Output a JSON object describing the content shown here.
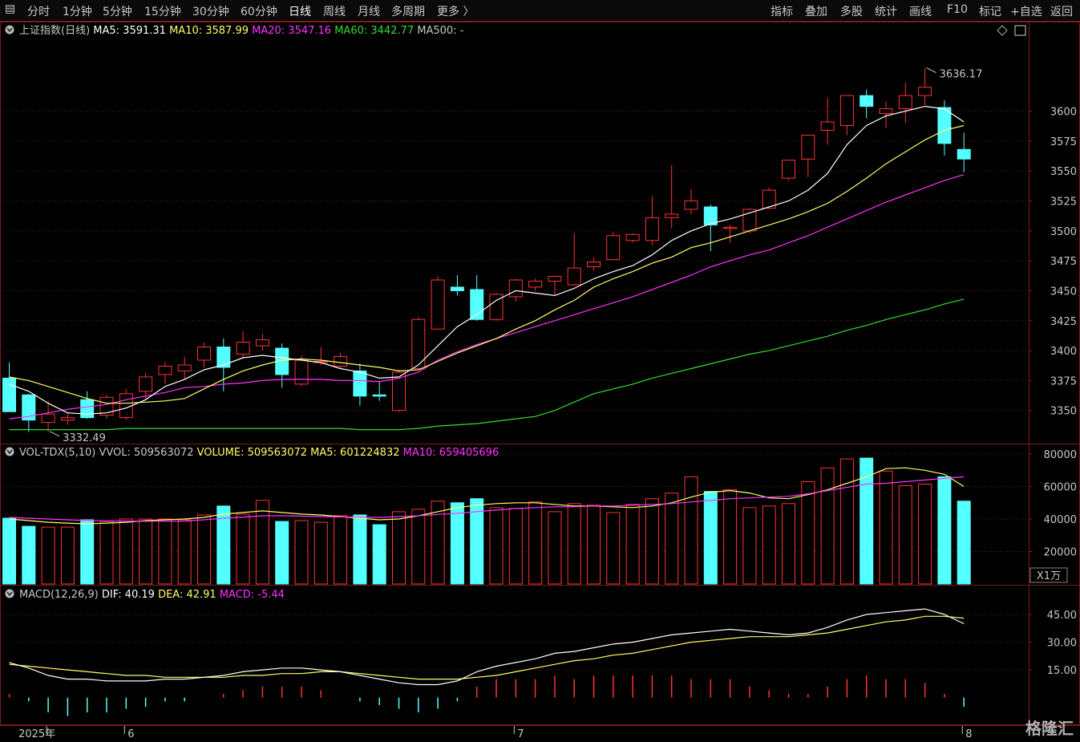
{
  "toolbar": {
    "left_items": [
      "分时",
      "1分钟",
      "5分钟",
      "15分钟",
      "30分钟",
      "60分钟",
      "日线",
      "周线",
      "月线",
      "多周期",
      "更多 〉"
    ],
    "active": "日线",
    "right_items": [
      "指标",
      "叠加",
      "多股",
      "统计",
      "画线",
      "F10",
      "标记",
      "+自选",
      "返回"
    ]
  },
  "colors": {
    "up": "#ff3232",
    "down": "#54ffff",
    "ma5": "#ffffff",
    "ma10": "#ffff66",
    "ma20": "#ff33ff",
    "ma60": "#33dd33",
    "grid": "#7a1c1c",
    "axis_text": "#c8c8c8"
  },
  "chart_data": [
    {
      "type": "candlestick",
      "name": "上证指数(日线)",
      "legend": [
        {
          "label": "MA5: 3591.31",
          "color": "#ffffff"
        },
        {
          "label": "MA10: 3587.99",
          "color": "#ffff66"
        },
        {
          "label": "MA20: 3547.16",
          "color": "#ff33ff"
        },
        {
          "label": "MA60: 3442.77",
          "color": "#33dd33"
        },
        {
          "label": "MA500: -",
          "color": "#c8c8c8"
        }
      ],
      "yticks": [
        3350,
        3375,
        3400,
        3425,
        3450,
        3475,
        3500,
        3525,
        3550,
        3575,
        3600
      ],
      "ylim": [
        3323,
        3660
      ],
      "annotations": [
        {
          "text": "3636.17",
          "x": 47,
          "y": 3636.17
        },
        {
          "text": "3332.49",
          "x": 2,
          "y": 3332.49
        }
      ],
      "ohlc": [
        [
          3377,
          3390,
          3349,
          3349
        ],
        [
          3363,
          3364,
          3332,
          3342
        ],
        [
          3340,
          3358,
          3332,
          3347
        ],
        [
          3342,
          3348,
          3338,
          3344
        ],
        [
          3359,
          3366,
          3343,
          3344
        ],
        [
          3346,
          3363,
          3343,
          3361
        ],
        [
          3344,
          3368,
          3342,
          3364
        ],
        [
          3366,
          3381,
          3360,
          3378
        ],
        [
          3380,
          3390,
          3372,
          3387
        ],
        [
          3383,
          3395,
          3376,
          3388
        ],
        [
          3392,
          3407,
          3386,
          3403
        ],
        [
          3403,
          3410,
          3366,
          3386
        ],
        [
          3397,
          3416,
          3394,
          3407
        ],
        [
          3404,
          3414,
          3400,
          3409
        ],
        [
          3402,
          3406,
          3369,
          3380
        ],
        [
          3372,
          3396,
          3370,
          3392
        ],
        [
          3391,
          3403,
          3388,
          3391
        ],
        [
          3387,
          3398,
          3385,
          3395
        ],
        [
          3383,
          3389,
          3354,
          3362
        ],
        [
          3363,
          3374,
          3358,
          3362
        ],
        [
          3350,
          3384,
          3349,
          3382
        ],
        [
          3385,
          3428,
          3385,
          3426
        ],
        [
          3418,
          3462,
          3418,
          3459
        ],
        [
          3453,
          3463,
          3446,
          3450
        ],
        [
          3451,
          3463,
          3425,
          3426
        ],
        [
          3426,
          3448,
          3425,
          3447
        ],
        [
          3445,
          3460,
          3441,
          3459
        ],
        [
          3453,
          3460,
          3450,
          3458
        ],
        [
          3458,
          3463,
          3446,
          3462
        ],
        [
          3455,
          3498,
          3454,
          3469
        ],
        [
          3470,
          3478,
          3467,
          3474
        ],
        [
          3476,
          3499,
          3476,
          3496
        ],
        [
          3492,
          3498,
          3490,
          3497
        ],
        [
          3492,
          3529,
          3488,
          3511
        ],
        [
          3511,
          3555,
          3502,
          3514
        ],
        [
          3518,
          3535,
          3514,
          3525
        ],
        [
          3520,
          3522,
          3483,
          3505
        ],
        [
          3502,
          3505,
          3490,
          3503
        ],
        [
          3500,
          3519,
          3498,
          3518
        ],
        [
          3519,
          3536,
          3518,
          3534
        ],
        [
          3544,
          3559,
          3542,
          3559
        ],
        [
          3560,
          3578,
          3545,
          3580
        ],
        [
          3584,
          3611,
          3572,
          3591
        ],
        [
          3588,
          3610,
          3580,
          3613
        ],
        [
          3613,
          3618,
          3594,
          3604
        ],
        [
          3598,
          3608,
          3586,
          3602
        ],
        [
          3602,
          3624,
          3590,
          3613
        ],
        [
          3613,
          3636,
          3605,
          3620
        ],
        [
          3603,
          3609,
          3563,
          3573
        ],
        [
          3568,
          3582,
          3549,
          3560
        ]
      ],
      "ma5": [
        3372,
        3366,
        3356,
        3348,
        3347,
        3348,
        3352,
        3359,
        3370,
        3376,
        3384,
        3388,
        3394,
        3396,
        3394,
        3392,
        3390,
        3385,
        3382,
        3377,
        3378,
        3388,
        3404,
        3420,
        3430,
        3442,
        3450,
        3448,
        3446,
        3452,
        3460,
        3466,
        3471,
        3480,
        3492,
        3500,
        3506,
        3510,
        3515,
        3520,
        3525,
        3534,
        3548,
        3572,
        3588,
        3596,
        3600,
        3604,
        3602,
        3591
      ],
      "ma10": [
        3378,
        3375,
        3370,
        3365,
        3360,
        3356,
        3356,
        3357,
        3358,
        3360,
        3368,
        3376,
        3383,
        3388,
        3392,
        3393,
        3392,
        3390,
        3388,
        3386,
        3383,
        3384,
        3391,
        3398,
        3404,
        3410,
        3418,
        3425,
        3434,
        3442,
        3453,
        3460,
        3466,
        3473,
        3478,
        3486,
        3490,
        3495,
        3500,
        3505,
        3510,
        3516,
        3523,
        3533,
        3544,
        3556,
        3566,
        3576,
        3584,
        3588
      ],
      "ma20": [
        3343,
        3345,
        3348,
        3351,
        3353,
        3355,
        3359,
        3362,
        3365,
        3369,
        3370,
        3372,
        3373,
        3375,
        3376,
        3376,
        3376,
        3375,
        3375,
        3374,
        3377,
        3382,
        3392,
        3399,
        3405,
        3410,
        3415,
        3420,
        3425,
        3430,
        3435,
        3440,
        3445,
        3451,
        3457,
        3463,
        3470,
        3475,
        3480,
        3484,
        3490,
        3496,
        3503,
        3510,
        3517,
        3524,
        3530,
        3536,
        3542,
        3547
      ],
      "ma60": [
        3334,
        3334,
        3334,
        3334,
        3334,
        3334,
        3335,
        3335,
        3335,
        3335,
        3335,
        3335,
        3335,
        3335,
        3335,
        3335,
        3335,
        3335,
        3334,
        3334,
        3334,
        3335,
        3337,
        3338,
        3339,
        3341,
        3343,
        3345,
        3350,
        3357,
        3364,
        3368,
        3372,
        3377,
        3381,
        3385,
        3389,
        3393,
        3397,
        3400,
        3404,
        3408,
        3412,
        3417,
        3421,
        3426,
        3430,
        3434,
        3439,
        3443
      ]
    },
    {
      "type": "bar",
      "name": "VOL-TDX(5,10)",
      "legend": [
        {
          "label": "VVOL: 509563072",
          "color": "#c8c8c8"
        },
        {
          "label": "VOLUME: 509563072",
          "color": "#ffff66"
        },
        {
          "label": "MA5: 601224832",
          "color": "#ffff66"
        },
        {
          "label": "MA10: 659405696",
          "color": "#ff33ff"
        }
      ],
      "unit": "X1万",
      "yticks": [
        20000,
        40000,
        60000,
        80000
      ],
      "ylim": [
        0,
        81000
      ],
      "values": [
        40500,
        35500,
        35000,
        35000,
        39500,
        38500,
        40000,
        40000,
        40000,
        39500,
        42500,
        48000,
        43000,
        51500,
        38500,
        39000,
        38000,
        42000,
        42500,
        36500,
        44500,
        46000,
        51000,
        50000,
        52500,
        47000,
        46500,
        50500,
        44500,
        49500,
        48500,
        44000,
        49000,
        52500,
        56000,
        66000,
        57000,
        58000,
        47000,
        48000,
        49500,
        63000,
        71500,
        77000,
        77500,
        69500,
        60500,
        61500,
        66000,
        51000
      ],
      "ma5": [
        40000,
        39000,
        38000,
        37500,
        37000,
        37500,
        38000,
        39000,
        39500,
        40000,
        41000,
        43000,
        44000,
        45000,
        44000,
        43000,
        42500,
        41500,
        40500,
        39500,
        40000,
        42000,
        44500,
        47000,
        48500,
        49500,
        50000,
        50000,
        49000,
        48000,
        48000,
        47500,
        47000,
        48000,
        50000,
        53500,
        56500,
        57500,
        56000,
        53000,
        52500,
        55000,
        58000,
        62000,
        66000,
        71000,
        71500,
        70000,
        67500,
        60000
      ],
      "ma10": [
        41000,
        40500,
        40000,
        39500,
        39000,
        38800,
        38700,
        38600,
        38600,
        38700,
        39500,
        40500,
        41200,
        42000,
        42000,
        41800,
        41500,
        41300,
        41200,
        41000,
        41500,
        42000,
        42800,
        43500,
        44500,
        45500,
        46500,
        47000,
        47500,
        47500,
        48000,
        48000,
        48500,
        49000,
        49500,
        50500,
        51500,
        52500,
        53000,
        53500,
        54000,
        55500,
        57500,
        59500,
        61500,
        62000,
        63000,
        64000,
        65000,
        66000
      ]
    },
    {
      "type": "line",
      "name": "MACD(12,26,9)",
      "legend": [
        {
          "label": "DIF: 40.19",
          "color": "#ffffff"
        },
        {
          "label": "DEA: 42.91",
          "color": "#ffff66"
        },
        {
          "label": "MACD: -5.44",
          "color": "#ff33ff"
        }
      ],
      "yticks": [
        15,
        30,
        45
      ],
      "ylim": [
        -11,
        55
      ],
      "dif": [
        19,
        16,
        12,
        10,
        10,
        9,
        9,
        9,
        10,
        10,
        11,
        12,
        14,
        15,
        16,
        16,
        15,
        14,
        12,
        10,
        8,
        7,
        7,
        9,
        14,
        17,
        19,
        21,
        24,
        25,
        27,
        29,
        30,
        32,
        34,
        35,
        36,
        37,
        36,
        35,
        34,
        35,
        38,
        42,
        45,
        46,
        47,
        48,
        45,
        40
      ],
      "dea": [
        18,
        17,
        16,
        15,
        14,
        13,
        12,
        12,
        11,
        11,
        11,
        11,
        12,
        12,
        13,
        13,
        14,
        14,
        13,
        12,
        11,
        10,
        10,
        10,
        11,
        12,
        14,
        16,
        18,
        20,
        21,
        23,
        24,
        26,
        28,
        30,
        31,
        32,
        33,
        33,
        33,
        34,
        35,
        37,
        39,
        41,
        42,
        44,
        44,
        43
      ],
      "macd": [
        2,
        -2,
        -8,
        -10,
        -8,
        -8,
        -6,
        -5,
        -2,
        -2,
        0,
        2,
        4,
        6,
        6,
        6,
        4,
        0,
        -2,
        -4,
        -6,
        -8,
        -6,
        -2,
        6,
        10,
        10,
        10,
        12,
        10,
        12,
        12,
        12,
        12,
        12,
        10,
        10,
        10,
        6,
        4,
        2,
        2,
        6,
        10,
        12,
        10,
        10,
        8,
        2,
        -5
      ]
    },
    {
      "type": "x-axis",
      "labels": [
        {
          "text": "2025年",
          "index": 2
        },
        {
          "text": "6",
          "index": 6
        },
        {
          "text": "7",
          "index": 26
        },
        {
          "text": "8",
          "index": 49
        }
      ]
    }
  ],
  "watermark": "格隆汇"
}
